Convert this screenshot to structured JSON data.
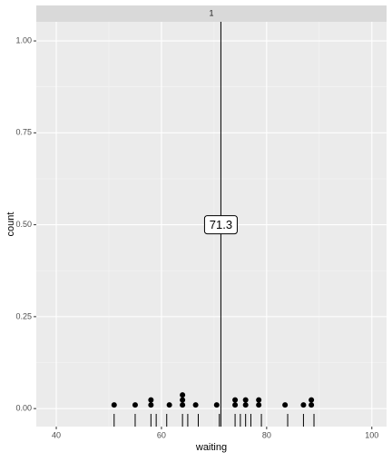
{
  "chart_data": {
    "type": "dotplot",
    "facet_label": "1",
    "x_label": "waiting",
    "y_label": "count",
    "xlim": [
      36.2,
      102.8
    ],
    "ylim": [
      -0.049,
      1.052
    ],
    "xticks": [
      40,
      60,
      80,
      100
    ],
    "yticks": [
      {
        "value": 0,
        "label": "0.00"
      },
      {
        "value": 0.25,
        "label": "0.25"
      },
      {
        "value": 0.5,
        "label": "0.50"
      },
      {
        "value": 0.75,
        "label": "0.75"
      },
      {
        "value": 1,
        "label": "1.00"
      }
    ],
    "dots": {
      "x": [
        51,
        55,
        58,
        61.5,
        64,
        66.5,
        70.5,
        74,
        76,
        78.5,
        83.5,
        87,
        88.5
      ],
      "counts": [
        1,
        1,
        2,
        1,
        3,
        1,
        1,
        2,
        2,
        2,
        1,
        1,
        2
      ]
    },
    "rug": [
      51,
      55,
      58,
      59,
      61,
      64,
      65,
      67,
      71,
      74,
      75,
      76,
      77,
      79,
      84,
      87,
      89
    ],
    "vline": {
      "value": 71.3,
      "label_y": 0.5
    },
    "color": "#000000",
    "grid": true
  }
}
